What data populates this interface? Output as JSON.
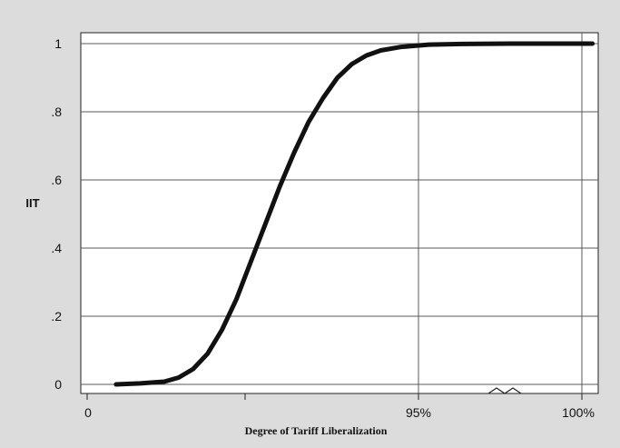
{
  "chart_data": {
    "type": "line",
    "title": "",
    "xlabel": "Degree of Tariff Liberalization",
    "ylabel": "IIT",
    "x_tick_labels": [
      "0",
      "95%",
      "100%"
    ],
    "y_tick_labels": [
      "0",
      ".2",
      ".4",
      ".6",
      ".8",
      "1"
    ],
    "y_ticks": [
      0,
      0.2,
      0.4,
      0.6,
      0.8,
      1.0
    ],
    "ylim": [
      0,
      1
    ],
    "grid": true,
    "axis_break": true,
    "series": [
      {
        "values": [
          [
            0.03,
            0.0
          ],
          [
            0.08,
            0.003
          ],
          [
            0.13,
            0.008
          ],
          [
            0.16,
            0.02
          ],
          [
            0.19,
            0.045
          ],
          [
            0.22,
            0.09
          ],
          [
            0.25,
            0.16
          ],
          [
            0.28,
            0.25
          ],
          [
            0.31,
            0.36
          ],
          [
            0.34,
            0.47
          ],
          [
            0.37,
            0.58
          ],
          [
            0.4,
            0.68
          ],
          [
            0.43,
            0.77
          ],
          [
            0.46,
            0.84
          ],
          [
            0.49,
            0.9
          ],
          [
            0.52,
            0.94
          ],
          [
            0.55,
            0.965
          ],
          [
            0.58,
            0.98
          ],
          [
            0.62,
            0.99
          ],
          [
            0.68,
            0.997
          ],
          [
            0.75,
            0.999
          ],
          [
            0.85,
            1.0
          ],
          [
            0.94,
            1.0
          ],
          [
            1.02,
            1.0
          ]
        ]
      }
    ]
  }
}
